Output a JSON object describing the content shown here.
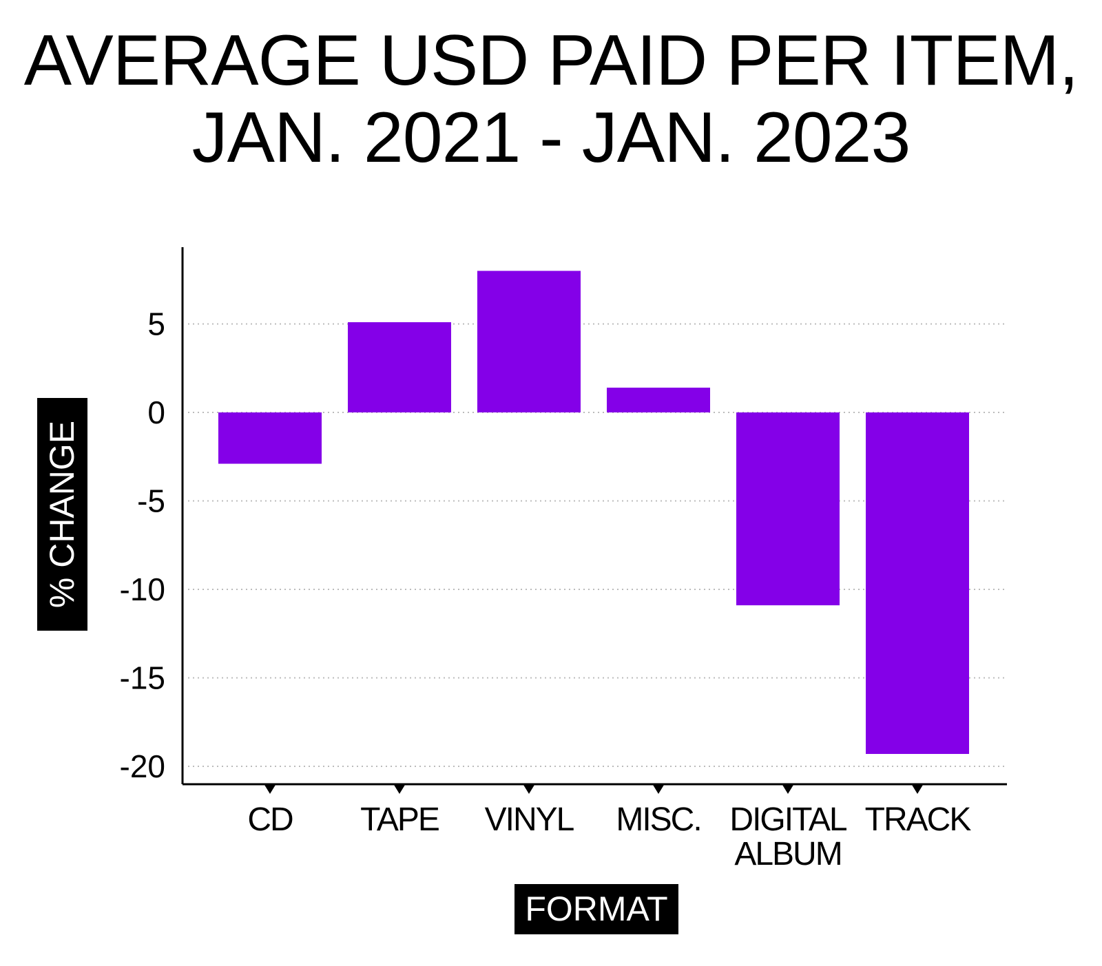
{
  "chart_data": {
    "type": "bar",
    "title": [
      "AVERAGE USD PAID PER ITEM,",
      "JAN. 2021 - JAN. 2023"
    ],
    "xlabel": "FORMAT",
    "ylabel": "% CHANGE",
    "categories": [
      [
        "CD"
      ],
      [
        "TAPE"
      ],
      [
        "VINYL"
      ],
      [
        "MISC."
      ],
      [
        "DIGITAL",
        "ALBUM"
      ],
      [
        "TRACK"
      ]
    ],
    "values": [
      -2.9,
      5.1,
      8.0,
      1.4,
      -10.9,
      -19.3
    ],
    "yticks": [
      5,
      0,
      -5,
      -10,
      -15,
      -20
    ],
    "ylim": [
      -20.6,
      9.4
    ],
    "grid": "horizontal dotted",
    "bar_color": "#8400E8"
  }
}
